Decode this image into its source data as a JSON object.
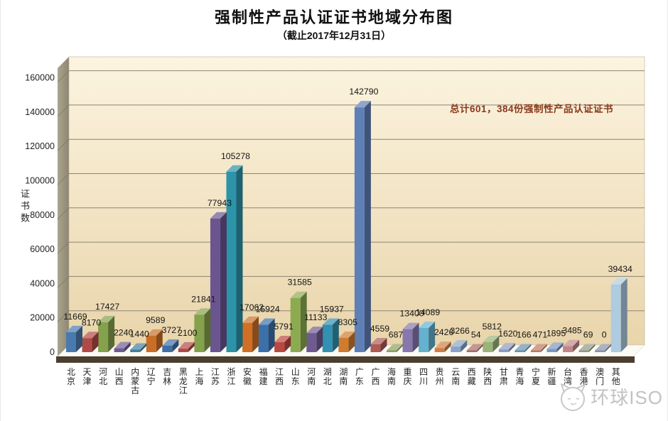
{
  "header": {
    "title": "强制性产品认证证书地域分布图",
    "subtitle": "（截止2017年12月31日）"
  },
  "watermark": {
    "text": "环球ISO"
  },
  "chart_data": {
    "type": "bar",
    "style": "3d-column",
    "title": "强制性产品认证证书地域分布图",
    "subtitle": "（截止2017年12月31日）",
    "xlabel": "",
    "ylabel": "证书数",
    "ylim": [
      0,
      160000
    ],
    "ytick_step": 20000,
    "yticks": [
      0,
      20000,
      40000,
      60000,
      80000,
      100000,
      120000,
      140000,
      160000
    ],
    "grid": true,
    "legend": false,
    "annotation": "总计601，384份强制性产品认证证书",
    "annotation_color": "#8a3a1c",
    "total": 601384,
    "wall_color_top": "#fcf4e0",
    "wall_color_bottom": "#e9d5ab",
    "side_wall_color": "#a09880",
    "floor_color": "#fbfaf4",
    "floor_edge_color": "#4a3e2e",
    "grid_color": "#8d8574",
    "label_color": "#151515",
    "categories": [
      "北京",
      "天津",
      "河北",
      "山西",
      "内蒙古",
      "辽宁",
      "吉林",
      "黑龙江",
      "上海",
      "江苏",
      "浙江",
      "安徽",
      "福建",
      "江西",
      "山东",
      "河南",
      "湖北",
      "湖南",
      "广东",
      "广西",
      "海南",
      "重庆",
      "四川",
      "贵州",
      "云南",
      "西藏",
      "陕西",
      "甘肃",
      "青海",
      "宁夏",
      "新疆",
      "台湾",
      "香港",
      "澳门",
      "其他"
    ],
    "values": [
      11669,
      8170,
      17427,
      2240,
      1440,
      9589,
      3727,
      2100,
      21841,
      77943,
      105278,
      17062,
      15924,
      5791,
      31585,
      11133,
      15937,
      8305,
      142790,
      4559,
      687,
      13400,
      14089,
      2426,
      3266,
      54,
      5812,
      1620,
      166,
      471,
      1895,
      3485,
      69,
      0,
      39434
    ],
    "colors": [
      "#4a79ad",
      "#b04a46",
      "#84a14c",
      "#6f5b91",
      "#3f7ea1",
      "#c96e27",
      "#3f6fa8",
      "#b04a46",
      "#84a14c",
      "#6b5590",
      "#2d93a8",
      "#cf7026",
      "#3c70ab",
      "#bb4741",
      "#8cab50",
      "#6f5b91",
      "#3290b0",
      "#d07c2e",
      "#5f80b6",
      "#ae5a55",
      "#8ca05e",
      "#8677ac",
      "#64b2cf",
      "#d08044",
      "#8aa3c9",
      "#a96a66",
      "#9ab377",
      "#8c9bc0",
      "#6593b3",
      "#bd7a62",
      "#7d97c0",
      "#c0878b",
      "#8e9b84",
      "#8793a8",
      "#aecbe0"
    ]
  }
}
